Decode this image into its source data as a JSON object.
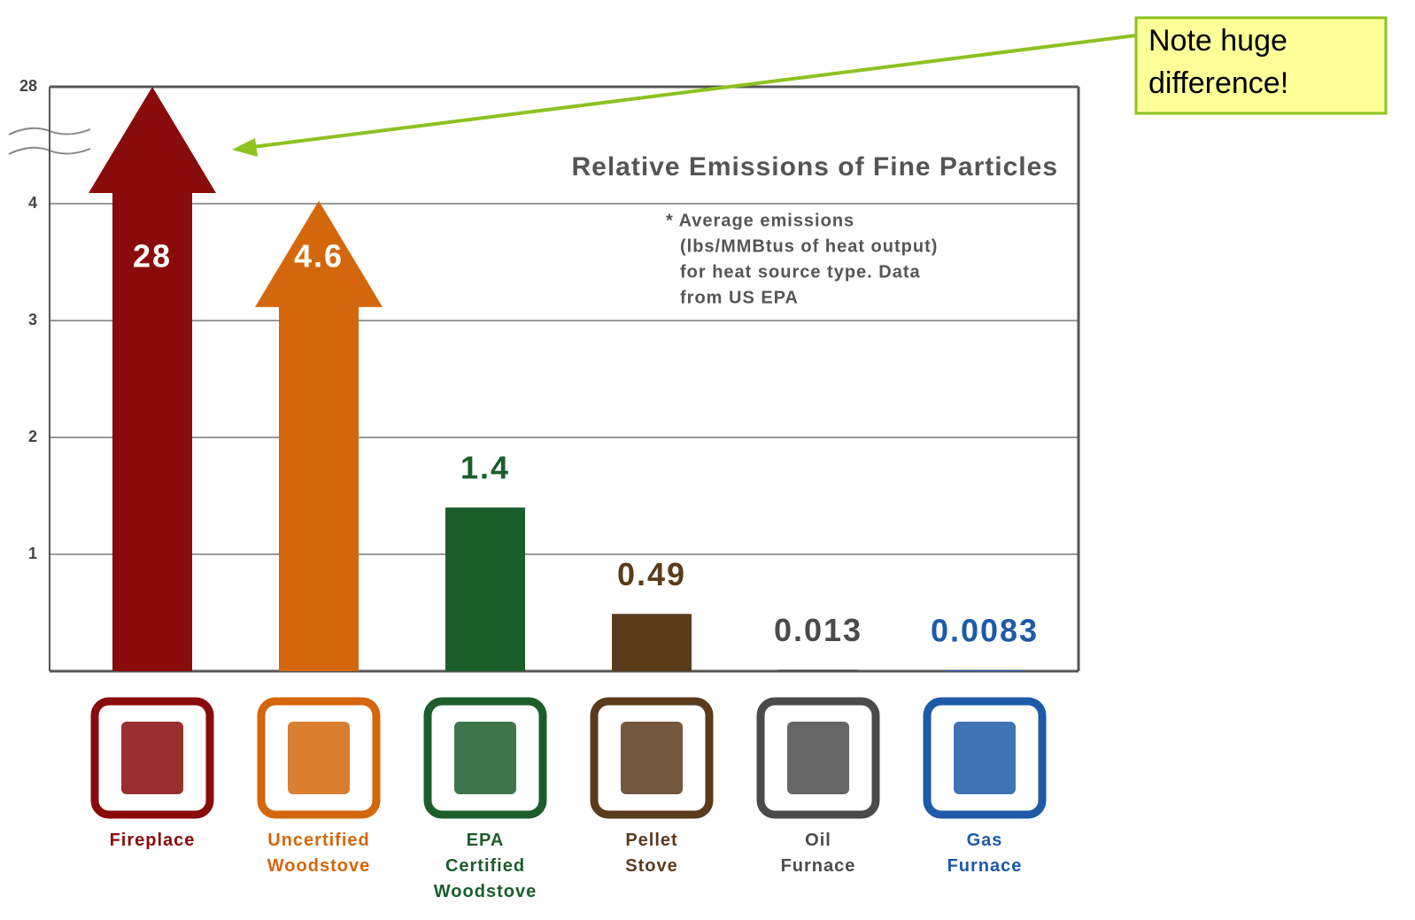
{
  "chart_data": {
    "type": "bar",
    "title": "Relative Emissions of Fine Particles",
    "note": [
      "* Average emissions",
      "(lbs/MMBtus of heat output)",
      "for heat source type. Data",
      "from US EPA"
    ],
    "annotation": [
      "Note huge",
      "difference!"
    ],
    "categories": [
      "Fireplace",
      "Uncertified Woodstove",
      "EPA Certified Woodstove",
      "Pellet Stove",
      "Oil Furnace",
      "Gas Furnace"
    ],
    "values": [
      28,
      4.6,
      1.4,
      0.49,
      0.013,
      0.0083
    ],
    "colors": [
      "#8a0b0b",
      "#d4670c",
      "#1b5e2c",
      "#5b3b1c",
      "#4b4b4b",
      "#1d5aa8"
    ],
    "ylim": [
      0,
      28
    ],
    "yticks": [
      1,
      2,
      3,
      4,
      28
    ],
    "grid": true
  }
}
